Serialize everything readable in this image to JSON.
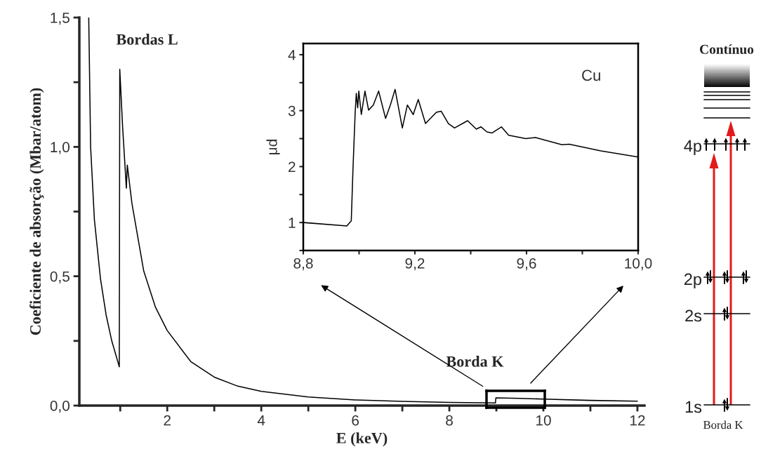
{
  "chart_data": [
    {
      "type": "line",
      "xlabel": "E (keV)",
      "ylabel": "Coeficiente de absorção (Mbar/atom)",
      "xlim": [
        0.13,
        12.15
      ],
      "ylim": [
        0,
        1.5
      ],
      "xticks": [
        {
          "value": 1,
          "label": null
        },
        2,
        {
          "value": 3,
          "label": null
        },
        4,
        {
          "value": 5,
          "label": null
        },
        6,
        {
          "value": 7,
          "label": null
        },
        8,
        {
          "value": 9,
          "label": null
        },
        10,
        {
          "value": 11,
          "label": null
        },
        12
      ],
      "yticks": [
        {
          "value": 0,
          "label": "0,0"
        },
        {
          "value": 0.25,
          "label": null
        },
        {
          "value": 0.5,
          "label": "0,5"
        },
        {
          "value": 0.75,
          "label": null
        },
        {
          "value": 1.0,
          "label": "1,0"
        },
        {
          "value": 1.25,
          "label": null
        },
        {
          "value": 1.5,
          "label": "1,5"
        }
      ],
      "series": [
        {
          "color": "#000000",
          "x": [
            0.33,
            0.37,
            0.45,
            0.58,
            0.7,
            0.82,
            0.9,
            0.98,
            0.99,
            1.05,
            1.1,
            1.13,
            1.15,
            1.25,
            1.5,
            1.75,
            2,
            2.5,
            3,
            3.5,
            4,
            5,
            6,
            7,
            8,
            8.98,
            8.99,
            9.5,
            10,
            11,
            12
          ],
          "values": [
            1.5,
            1.0,
            0.72,
            0.49,
            0.35,
            0.25,
            0.2,
            0.15,
            1.3,
            1.08,
            0.93,
            0.84,
            0.93,
            0.78,
            0.52,
            0.38,
            0.29,
            0.17,
            0.11,
            0.075,
            0.055,
            0.033,
            0.022,
            0.016,
            0.012,
            0.01,
            0.03,
            0.028,
            0.025,
            0.02,
            0.017
          ]
        }
      ],
      "annotations": [
        "Bordas L",
        "Borda K"
      ]
    },
    {
      "type": "line",
      "ylabel": "μd",
      "xlim": [
        8.8,
        10.0
      ],
      "ylim": [
        0.5,
        4.2
      ],
      "xticks": [
        {
          "value": 8.8,
          "label": "8,8"
        },
        {
          "value": 9.0,
          "label": null
        },
        {
          "value": 9.2,
          "label": "9,2"
        },
        {
          "value": 9.4,
          "label": null
        },
        {
          "value": 9.6,
          "label": "9,6"
        },
        {
          "value": 9.8,
          "label": null
        },
        {
          "value": 10.0,
          "label": "10,0"
        }
      ],
      "yticks": [
        {
          "value": 0.5,
          "label": null
        },
        1,
        {
          "value": 1.5,
          "label": null
        },
        2,
        {
          "value": 2.5,
          "label": null
        },
        3,
        {
          "value": 3.5,
          "label": null
        },
        4
      ],
      "series": [
        {
          "color": "#000000",
          "x": [
            8.8,
            8.956,
            8.972,
            8.978,
            8.986,
            8.99,
            8.995,
            8.999,
            9.008,
            9.021,
            9.034,
            9.051,
            9.07,
            9.095,
            9.112,
            9.129,
            9.155,
            9.173,
            9.194,
            9.212,
            9.238,
            9.277,
            9.294,
            9.32,
            9.342,
            9.389,
            9.42,
            9.437,
            9.458,
            9.476,
            9.51,
            9.536,
            9.597,
            9.632,
            9.727,
            9.753,
            9.866,
            10.0
          ],
          "values": [
            1.0,
            0.94,
            1.03,
            1.94,
            2.97,
            3.31,
            3.05,
            3.35,
            2.93,
            3.35,
            3.01,
            3.1,
            3.35,
            2.86,
            3.1,
            3.38,
            2.69,
            3.1,
            2.93,
            3.2,
            2.77,
            2.97,
            2.99,
            2.77,
            2.69,
            2.82,
            2.67,
            2.71,
            2.62,
            2.6,
            2.71,
            2.56,
            2.5,
            2.52,
            2.39,
            2.4,
            2.28,
            2.17
          ]
        }
      ],
      "annotations": [
        "Cu"
      ]
    },
    {
      "type": "other",
      "annotations": [
        "Contínuo",
        "4p",
        "2p",
        "2s",
        "1s",
        "Borda K"
      ]
    }
  ]
}
